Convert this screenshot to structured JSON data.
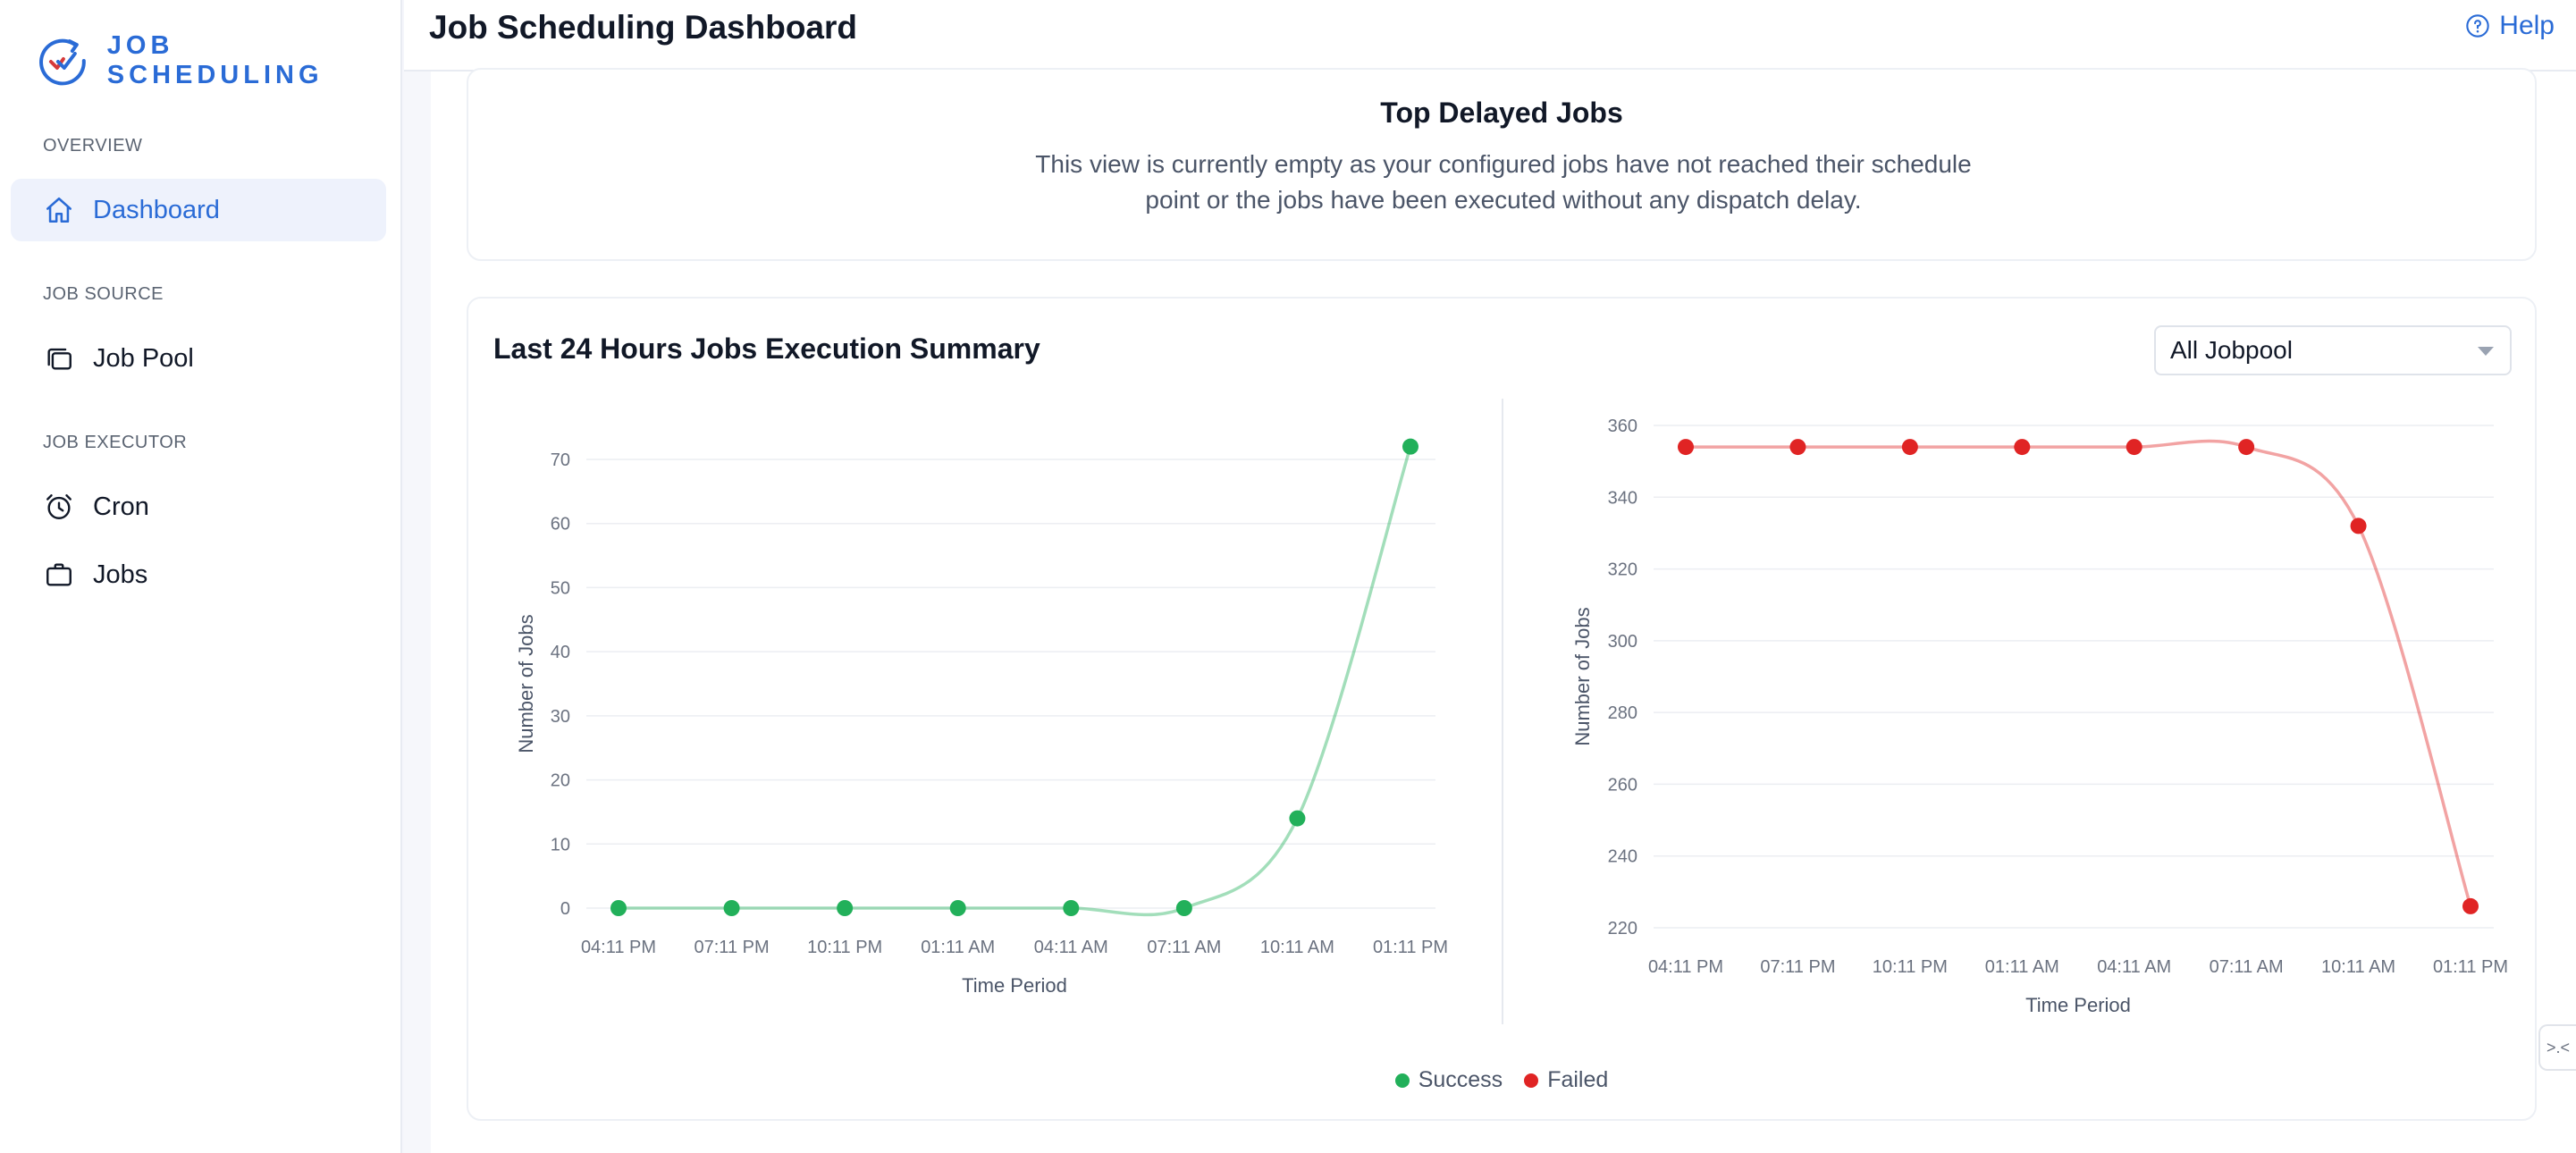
{
  "brand": {
    "name": "JOB SCHEDULING",
    "accent": "#2a6bd6"
  },
  "sidebar": {
    "sections": [
      {
        "label": "OVERVIEW",
        "items": [
          {
            "label": "Dashboard",
            "icon": "home-icon",
            "active": true
          }
        ]
      },
      {
        "label": "JOB SOURCE",
        "items": [
          {
            "label": "Job Pool",
            "icon": "stack-icon"
          }
        ]
      },
      {
        "label": "JOB EXECUTOR",
        "items": [
          {
            "label": "Cron",
            "icon": "alarm-clock-icon"
          },
          {
            "label": "Jobs",
            "icon": "briefcase-icon"
          }
        ]
      }
    ]
  },
  "header": {
    "title": "Job Scheduling Dashboard",
    "help_label": "Help"
  },
  "delayed": {
    "title": "Top Delayed Jobs",
    "message_line1": "This view is currently empty as your configured jobs have not reached their schedule",
    "message_line2": "point or the jobs have been executed without any dispatch delay."
  },
  "summary": {
    "title": "Last 24 Hours Jobs Execution Summary",
    "filter_selected": "All Jobpool"
  },
  "legend": [
    {
      "label": "Success",
      "color": "#22b05a"
    },
    {
      "label": "Failed",
      "color": "#e02424"
    }
  ],
  "chart_data": [
    {
      "type": "line",
      "x": [
        "04:11 PM",
        "07:11 PM",
        "10:11 PM",
        "01:11 AM",
        "04:11 AM",
        "07:11 AM",
        "10:11 AM",
        "01:11 PM"
      ],
      "series": [
        {
          "name": "Success",
          "values": [
            0,
            0,
            0,
            0,
            0,
            0,
            14,
            72
          ],
          "color": "#22b05a"
        }
      ],
      "xlabel": "Time Period",
      "ylabel": "Number of Jobs",
      "ylim": [
        0,
        70
      ],
      "yticks": [
        0,
        10,
        20,
        30,
        40,
        50,
        60,
        70
      ],
      "grid": true
    },
    {
      "type": "line",
      "x": [
        "04:11 PM",
        "07:11 PM",
        "10:11 PM",
        "01:11 AM",
        "04:11 AM",
        "07:11 AM",
        "10:11 AM",
        "01:11 PM"
      ],
      "series": [
        {
          "name": "Failed",
          "values": [
            354,
            354,
            354,
            354,
            354,
            354,
            332,
            226
          ],
          "color": "#e02424"
        }
      ],
      "xlabel": "Time Period",
      "ylabel": "Number of Jobs",
      "ylim": [
        220,
        360
      ],
      "yticks": [
        220,
        240,
        260,
        280,
        300,
        320,
        340,
        360
      ],
      "grid": true
    }
  ]
}
